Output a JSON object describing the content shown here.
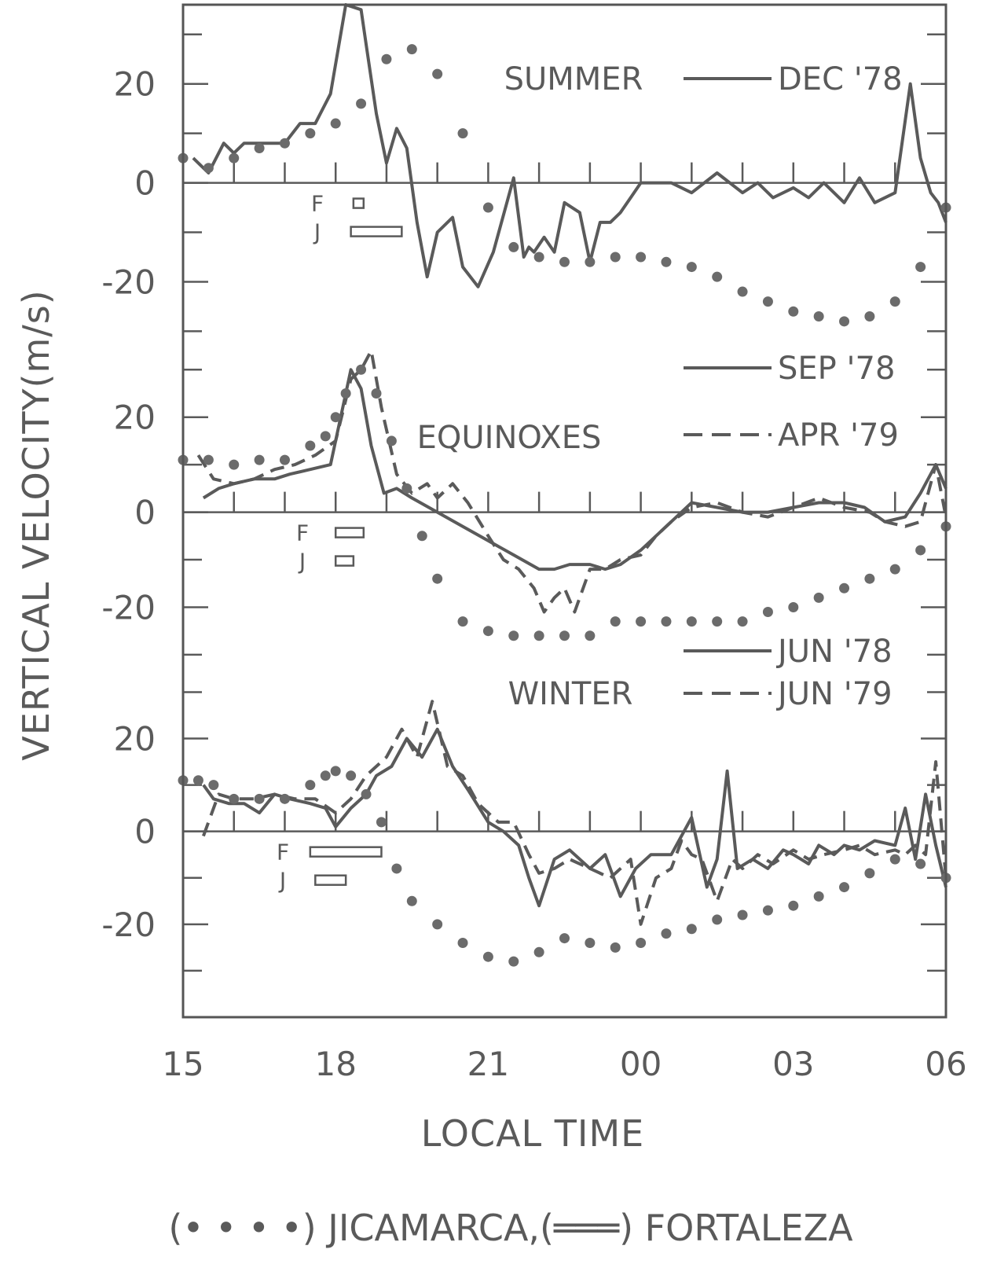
{
  "chart_data": {
    "type": "line",
    "xlabel": "LOCAL TIME",
    "ylabel": "VERTICAL VELOCITY(m/s)",
    "caption": "(• • • •) JICAMARCA,(═══) FORTALEZA",
    "x_tick_labels": [
      "15",
      "18",
      "21",
      "00",
      "03",
      "06"
    ],
    "x_ticks_hours": [
      15,
      18,
      21,
      24,
      27,
      30
    ],
    "xlim_hours": [
      15,
      30
    ],
    "panels": [
      {
        "name": "SUMMER",
        "ylim": [
          -32,
          36
        ],
        "y_ticks": [
          20,
          0,
          -20
        ],
        "y_tick_labels": [
          "20",
          "0",
          "-20"
        ],
        "legend": [
          {
            "label": "DEC '78",
            "style": "solid"
          }
        ],
        "fj_labels": [
          "F",
          "J"
        ],
        "fj_bars": [
          [
            18.35,
            18.55
          ],
          [
            18.3,
            19.3
          ]
        ],
        "series": [
          {
            "name": "DEC '78",
            "source": "Fortaleza",
            "style": "solid",
            "x": [
              15.2,
              15.5,
              15.8,
              16.0,
              16.2,
              16.5,
              17.0,
              17.3,
              17.6,
              17.9,
              18.2,
              18.5,
              18.6,
              18.8,
              19.0,
              19.2,
              19.4,
              19.6,
              19.8,
              20.0,
              20.3,
              20.5,
              20.8,
              21.1,
              21.5,
              21.7,
              21.8,
              21.9,
              22.1,
              22.3,
              22.5,
              22.8,
              23.0,
              23.2,
              23.4,
              23.6,
              23.8,
              24.0,
              24.3,
              24.6,
              25.0,
              25.5,
              26.0,
              26.3,
              26.6,
              27.0,
              27.3,
              27.6,
              28.0,
              28.3,
              28.6,
              29.0,
              29.3,
              29.5,
              29.7,
              29.85,
              30.0
            ],
            "y": [
              5,
              2,
              8,
              6,
              8,
              8,
              8,
              12,
              12,
              18,
              36,
              35,
              28,
              14,
              4,
              11,
              7,
              -8,
              -19,
              -10,
              -7,
              -17,
              -21,
              -14,
              1,
              -15,
              -13,
              -14,
              -11,
              -14,
              -4,
              -6,
              -16,
              -8,
              -8,
              -6,
              -3,
              0,
              0,
              0,
              -2,
              2,
              -2,
              0,
              -3,
              -1,
              -3,
              0,
              -4,
              1,
              -4,
              -2,
              20,
              5,
              -2,
              -4,
              -8
            ]
          },
          {
            "name": "Jicamarca",
            "source": "Jicamarca",
            "style": "dotted",
            "x": [
              15.0,
              15.5,
              16.0,
              16.5,
              17.0,
              17.5,
              18.0,
              18.5,
              19.0,
              19.5,
              20.0,
              20.5,
              21.0,
              21.5,
              22.0,
              22.5,
              23.0,
              23.5,
              24.0,
              24.5,
              25.0,
              25.5,
              26.0,
              26.5,
              27.0,
              27.5,
              28.0,
              28.5,
              29.0,
              29.5,
              30.0
            ],
            "y": [
              5,
              3,
              5,
              7,
              8,
              10,
              12,
              16,
              25,
              27,
              22,
              10,
              -5,
              -13,
              -15,
              -16,
              -16,
              -15,
              -15,
              -16,
              -17,
              -19,
              -22,
              -24,
              -26,
              -27,
              -28,
              -27,
              -24,
              -17,
              -5
            ]
          }
        ]
      },
      {
        "name": "EQUINOXES",
        "ylim": [
          -32,
          36
        ],
        "y_ticks": [
          20,
          0,
          -20
        ],
        "y_tick_labels": [
          "20",
          "0",
          "-20"
        ],
        "legend": [
          {
            "label": "SEP '78",
            "style": "solid"
          },
          {
            "label": "APR '79",
            "style": "dashed"
          }
        ],
        "fj_labels": [
          "F",
          "J"
        ],
        "fj_bars": [
          [
            18.0,
            18.55
          ],
          [
            18.0,
            18.35
          ]
        ],
        "series": [
          {
            "name": "SEP '78",
            "source": "Fortaleza",
            "style": "solid",
            "x": [
              15.4,
              15.7,
              16.0,
              16.4,
              16.8,
              17.1,
              17.5,
              17.9,
              18.3,
              18.5,
              18.7,
              18.95,
              19.2,
              19.5,
              20.0,
              20.5,
              21.0,
              21.5,
              22.0,
              22.3,
              22.6,
              23.0,
              23.3,
              23.6,
              24.0,
              24.3,
              24.6,
              25.0,
              25.5,
              26.0,
              26.5,
              27.0,
              27.5,
              28.0,
              28.4,
              28.8,
              29.2,
              29.5,
              29.8,
              30.0
            ],
            "y": [
              3,
              5,
              6,
              7,
              7,
              8,
              9,
              10,
              30,
              26,
              14,
              4,
              5,
              3,
              0,
              -3,
              -6,
              -9,
              -12,
              -12,
              -11,
              -11,
              -12,
              -11,
              -8,
              -5,
              -2,
              2,
              1,
              0,
              0,
              1,
              2,
              2,
              1,
              -2,
              -1,
              4,
              10,
              5
            ]
          },
          {
            "name": "APR '79",
            "source": "Fortaleza",
            "style": "dashed",
            "x": [
              15.3,
              15.6,
              16.0,
              16.4,
              16.8,
              17.2,
              17.6,
              18.0,
              18.3,
              18.5,
              18.7,
              18.9,
              19.2,
              19.5,
              19.8,
              20.0,
              20.3,
              20.6,
              21.0,
              21.3,
              21.6,
              21.9,
              22.1,
              22.3,
              22.5,
              22.7,
              23.0,
              23.3,
              23.6,
              24.0,
              24.3,
              24.6,
              25.0,
              25.5,
              26.0,
              26.5,
              27.0,
              27.5,
              28.0,
              28.5,
              28.8,
              29.2,
              29.5,
              29.8,
              30.0
            ],
            "y": [
              12,
              7,
              6,
              7,
              9,
              10,
              12,
              15,
              28,
              30,
              34,
              22,
              8,
              4,
              6,
              3,
              6,
              2,
              -5,
              -10,
              -12,
              -16,
              -21,
              -18,
              -16,
              -21,
              -12,
              -12,
              -10,
              -9,
              -5,
              -2,
              1,
              2,
              0,
              -1,
              1,
              3,
              1,
              0,
              -2,
              -3,
              -2,
              10,
              -1
            ]
          },
          {
            "name": "Jicamarca",
            "source": "Jicamarca",
            "style": "dotted",
            "x": [
              15.0,
              15.5,
              16.0,
              16.5,
              17.0,
              17.5,
              17.8,
              18.0,
              18.2,
              18.5,
              18.8,
              19.1,
              19.4,
              19.7,
              20.0,
              20.5,
              21.0,
              21.5,
              22.0,
              22.5,
              23.0,
              23.5,
              24.0,
              24.5,
              25.0,
              25.5,
              26.0,
              26.5,
              27.0,
              27.5,
              28.0,
              28.5,
              29.0,
              29.5,
              30.0
            ],
            "y": [
              11,
              11,
              10,
              11,
              11,
              14,
              16,
              20,
              25,
              30,
              25,
              15,
              5,
              -5,
              -14,
              -23,
              -25,
              -26,
              -26,
              -26,
              -26,
              -23,
              -23,
              -23,
              -23,
              -23,
              -23,
              -21,
              -20,
              -18,
              -16,
              -14,
              -12,
              -8,
              -3
            ]
          }
        ]
      },
      {
        "name": "WINTER",
        "ylim": [
          -40,
          36
        ],
        "y_ticks": [
          20,
          0,
          -20
        ],
        "y_tick_labels": [
          "20",
          "0",
          "-20"
        ],
        "legend": [
          {
            "label": "JUN '78",
            "style": "solid"
          },
          {
            "label": "JUN '79",
            "style": "dashed"
          }
        ],
        "fj_labels": [
          "F",
          "J"
        ],
        "fj_bars": [
          [
            17.5,
            18.9
          ],
          [
            17.6,
            18.2
          ]
        ],
        "series": [
          {
            "name": "JUN '78",
            "source": "Fortaleza",
            "style": "solid",
            "x": [
              15.4,
              15.6,
              15.9,
              16.2,
              16.5,
              16.8,
              17.1,
              17.5,
              17.8,
              18.0,
              18.3,
              18.6,
              18.8,
              19.1,
              19.4,
              19.7,
              20.0,
              20.3,
              20.6,
              21.0,
              21.3,
              21.6,
              21.8,
              22.0,
              22.3,
              22.6,
              23.0,
              23.3,
              23.6,
              23.9,
              24.2,
              24.6,
              25.0,
              25.3,
              25.5,
              25.7,
              25.9,
              26.2,
              26.5,
              26.8,
              27.0,
              27.3,
              27.5,
              27.8,
              28.0,
              28.3,
              28.6,
              29.0,
              29.2,
              29.4,
              29.6,
              29.8,
              30.0
            ],
            "y": [
              10,
              7,
              6,
              6,
              4,
              8,
              7,
              6,
              5,
              1,
              5,
              8,
              12,
              14,
              20,
              16,
              22,
              14,
              9,
              2,
              0,
              -3,
              -10,
              -16,
              -6,
              -4,
              -8,
              -5,
              -14,
              -8,
              -5,
              -5,
              3,
              -12,
              -6,
              13,
              -8,
              -6,
              -8,
              -4,
              -5,
              -7,
              -3,
              -5,
              -3,
              -4,
              -2,
              -3,
              5,
              -6,
              8,
              -3,
              -12
            ]
          },
          {
            "name": "JUN '79",
            "source": "Fortaleza",
            "style": "dashed",
            "x": [
              15.4,
              15.7,
              16.0,
              16.4,
              16.8,
              17.2,
              17.6,
              18.0,
              18.3,
              18.6,
              19.0,
              19.3,
              19.6,
              19.9,
              20.2,
              20.5,
              20.8,
              21.2,
              21.5,
              21.8,
              22.0,
              22.3,
              22.6,
              23.0,
              23.4,
              23.8,
              24.0,
              24.3,
              24.6,
              24.8,
              25.0,
              25.2,
              25.5,
              25.8,
              26.0,
              26.3,
              26.6,
              27.0,
              27.3,
              27.6,
              28.0,
              28.3,
              28.6,
              29.0,
              29.2,
              29.4,
              29.6,
              29.8,
              30.0
            ],
            "y": [
              -1,
              8,
              7,
              7,
              8,
              7,
              7,
              4,
              7,
              12,
              16,
              22,
              16,
              28,
              14,
              12,
              6,
              2,
              2,
              -5,
              -9,
              -8,
              -6,
              -8,
              -10,
              -6,
              -20,
              -10,
              -8,
              -2,
              -5,
              -6,
              -15,
              -6,
              -8,
              -5,
              -7,
              -4,
              -6,
              -5,
              -4,
              -3,
              -5,
              -4,
              -5,
              -3,
              -5,
              15,
              -10
            ]
          },
          {
            "name": "Jicamarca",
            "source": "Jicamarca",
            "style": "dotted",
            "x": [
              15.0,
              15.3,
              15.6,
              16.0,
              16.5,
              17.0,
              17.5,
              17.8,
              18.0,
              18.3,
              18.6,
              18.9,
              19.2,
              19.5,
              20.0,
              20.5,
              21.0,
              21.5,
              22.0,
              22.5,
              23.0,
              23.5,
              24.0,
              24.5,
              25.0,
              25.5,
              26.0,
              26.5,
              27.0,
              27.5,
              28.0,
              28.5,
              29.0,
              29.5,
              30.0
            ],
            "y": [
              11,
              11,
              10,
              7,
              7,
              7,
              10,
              12,
              13,
              12,
              8,
              2,
              -8,
              -15,
              -20,
              -24,
              -27,
              -28,
              -26,
              -23,
              -24,
              -25,
              -24,
              -22,
              -21,
              -19,
              -18,
              -17,
              -16,
              -14,
              -12,
              -9,
              -6,
              -7,
              -10
            ]
          }
        ]
      }
    ]
  }
}
